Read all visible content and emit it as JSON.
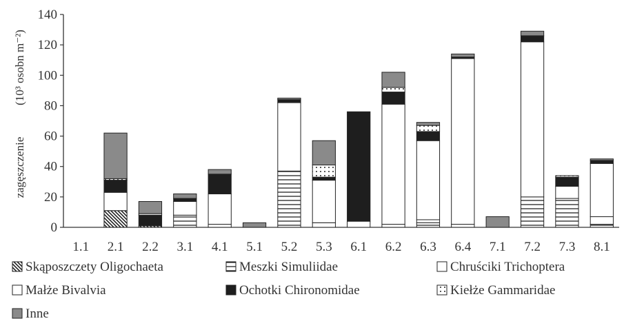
{
  "chart_data": {
    "type": "bar",
    "stacked": true,
    "ylabel": "zagęszczenie",
    "ylabel_unit": "(10³ osobn m⁻²)",
    "ylim": [
      0,
      140
    ],
    "yticks": [
      0,
      20,
      40,
      60,
      80,
      100,
      120,
      140
    ],
    "categories": [
      "1.1",
      "2.1",
      "2.2",
      "3.1",
      "4.1",
      "5.1",
      "5.2",
      "5.3",
      "6.1",
      "6.2",
      "6.3",
      "6.4",
      "7.1",
      "7.2",
      "7.3",
      "8.1"
    ],
    "legend_position": "bottom",
    "series": [
      {
        "name": "Skąposzczety Oligochaeta",
        "pattern": "diagonal",
        "values": [
          0,
          11,
          1,
          0,
          0,
          0,
          0,
          0,
          0,
          0,
          0,
          0,
          0,
          0,
          0,
          0
        ]
      },
      {
        "name": "Meszki Simuliidae",
        "pattern": "horizontal",
        "values": [
          0,
          0,
          0,
          8,
          0,
          0,
          37,
          0,
          0,
          0,
          3,
          0,
          0,
          20,
          19,
          2
        ]
      },
      {
        "name": "Chruściki Trichoptera",
        "pattern": "white",
        "values": [
          0,
          0,
          0,
          0,
          2,
          0,
          0,
          3,
          0,
          2,
          2,
          2,
          0,
          0,
          0,
          5
        ]
      },
      {
        "name": "Małże Bivalvia",
        "pattern": "white",
        "values": [
          0,
          12,
          0,
          9,
          20,
          0,
          45,
          28,
          4,
          79,
          52,
          109,
          0,
          102,
          8,
          35
        ]
      },
      {
        "name": "Ochotki  Chironomidae",
        "pattern": "black",
        "values": [
          0,
          8,
          7,
          2,
          13,
          0,
          2,
          2,
          72,
          8,
          6,
          1,
          0,
          4,
          6,
          2
        ]
      },
      {
        "name": "Kiełże Gammaridae",
        "pattern": "dotted",
        "values": [
          0,
          1,
          1,
          0,
          0,
          0,
          0,
          8,
          0,
          3,
          4,
          0,
          0,
          0,
          1,
          0
        ]
      },
      {
        "name": "Inne",
        "pattern": "gray",
        "values": [
          0,
          30,
          8,
          3,
          3,
          3,
          1,
          16,
          0,
          10,
          2,
          2,
          7,
          3,
          0,
          1
        ]
      }
    ]
  }
}
